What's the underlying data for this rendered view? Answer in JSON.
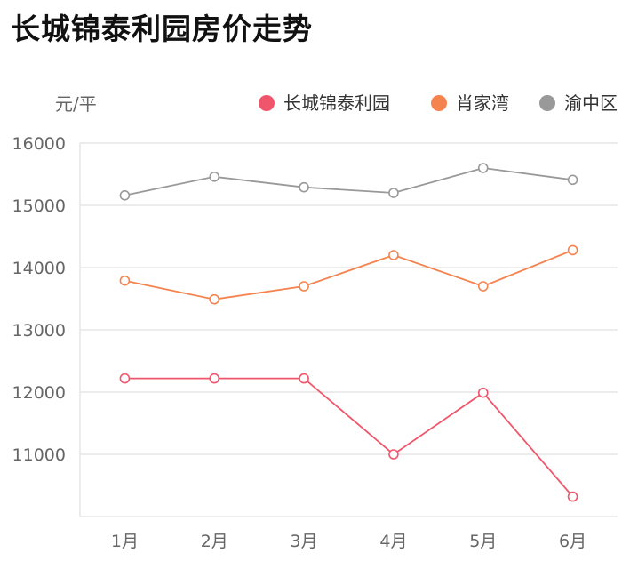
{
  "chart_data": {
    "type": "line",
    "title": "长城锦泰利园房价走势",
    "ylabel": "元/平",
    "xlabel": "",
    "categories": [
      "1月",
      "2月",
      "3月",
      "4月",
      "5月",
      "6月"
    ],
    "ylim": [
      10000,
      16000
    ],
    "yticks": [
      11000,
      12000,
      13000,
      14000,
      15000,
      16000
    ],
    "grid": true,
    "legend_position": "top-right",
    "series": [
      {
        "name": "长城锦泰利园",
        "color": "#f0566b",
        "values": [
          12220,
          12220,
          12220,
          11000,
          11990,
          10320
        ]
      },
      {
        "name": "肖家湾",
        "color": "#f5834f",
        "values": [
          13790,
          13490,
          13700,
          14200,
          13700,
          14280
        ]
      },
      {
        "name": "渝中区",
        "color": "#999999",
        "values": [
          15160,
          15460,
          15290,
          15200,
          15600,
          15410
        ]
      }
    ]
  }
}
